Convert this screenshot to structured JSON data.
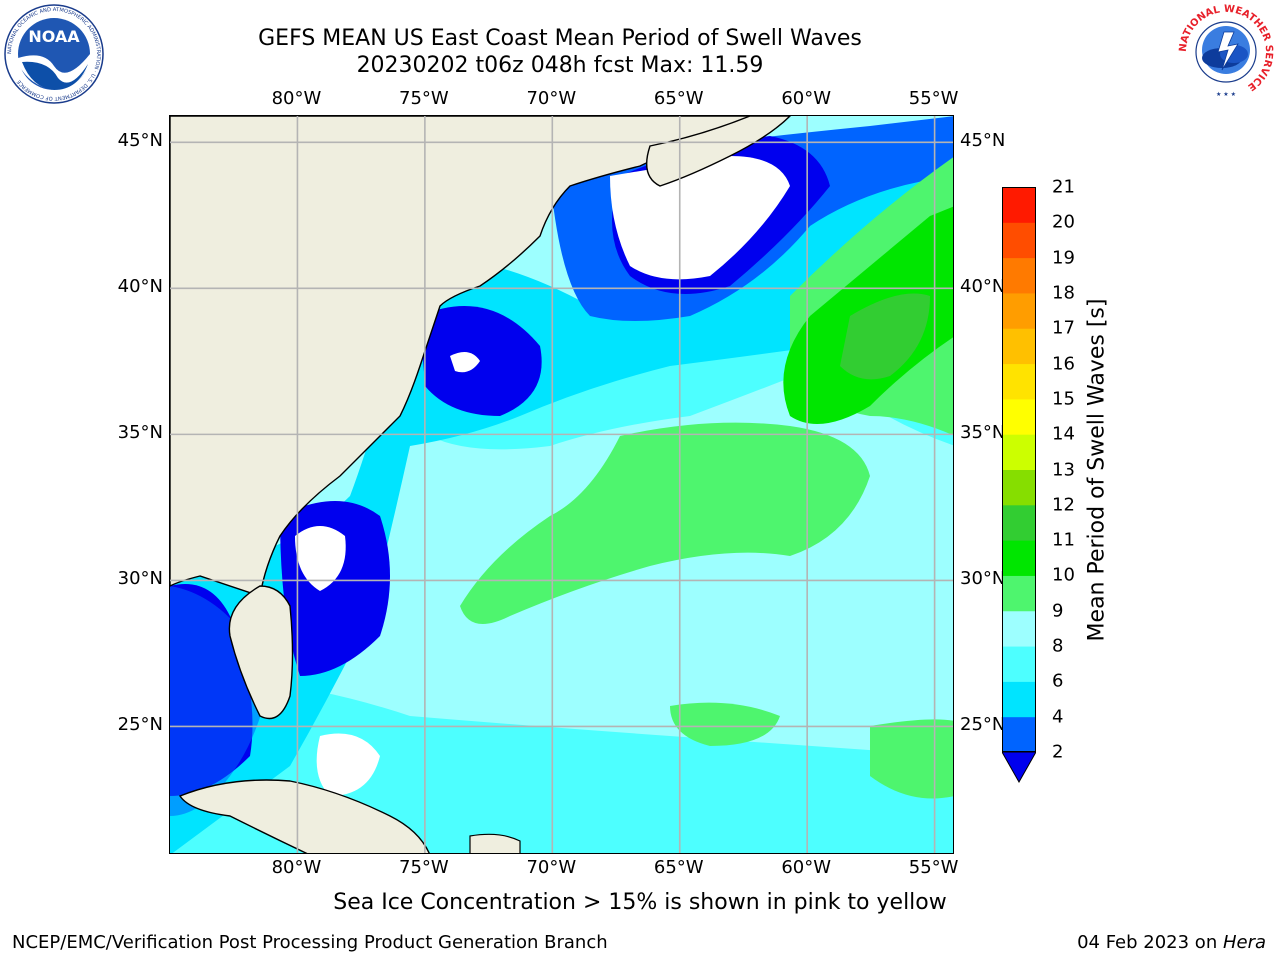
{
  "title_line1": "GEFS MEAN US East Coast Mean Period of Swell Waves",
  "title_line2": "20230202 t06z 048h fcst   Max: 11.59",
  "map": {
    "lon_ticks": [
      "80°W",
      "75°W",
      "70°W",
      "65°W",
      "60°W",
      "55°W"
    ],
    "lat_ticks": [
      "45°N",
      "40°N",
      "35°N",
      "30°N",
      "25°N"
    ],
    "lon_values": [
      -80,
      -75,
      -70,
      -65,
      -60,
      -55
    ],
    "lat_values": [
      45,
      40,
      35,
      30,
      25
    ],
    "land_color": "#efeedf",
    "grid_color": "#b4b4b4"
  },
  "colorbar": {
    "title": "Mean Period of Swell Waves [s]",
    "ticks": [
      "2",
      "4",
      "6",
      "8",
      "9",
      "10",
      "11",
      "12",
      "13",
      "14",
      "15",
      "16",
      "17",
      "18",
      "19",
      "20",
      "21"
    ],
    "levels": [
      2,
      4,
      6,
      8,
      9,
      10,
      11,
      12,
      13,
      14,
      15,
      16,
      17,
      18,
      19,
      20,
      21
    ],
    "colors": [
      "#0064ff",
      "#00e4ff",
      "#4dffff",
      "#9dffff",
      "#4ef56e",
      "#00e600",
      "#32cd32",
      "#86de00",
      "#ccff00",
      "#ffff00",
      "#ffe300",
      "#ffc000",
      "#ff9d00",
      "#ff7a00",
      "#ff4d00",
      "#ff1a00"
    ],
    "under_color": "#0000ee"
  },
  "footnote": "Sea Ice Concentration > 15% is shown in pink to yellow",
  "credit_left": "NCEP/EMC/Verification Post Processing Product Generation Branch",
  "credit_right_prefix": "04 Feb 2023 on ",
  "credit_right_machine": "Hera",
  "logos": {
    "noaa": {
      "text": "NOAA",
      "ring_text": "NATIONAL OCEANIC AND ATMOSPHERIC ADMINISTRATION · U.S. DEPARTMENT OF COMMERCE"
    },
    "nws": {
      "ring_text": "NATIONAL WEATHER SERVICE"
    }
  }
}
